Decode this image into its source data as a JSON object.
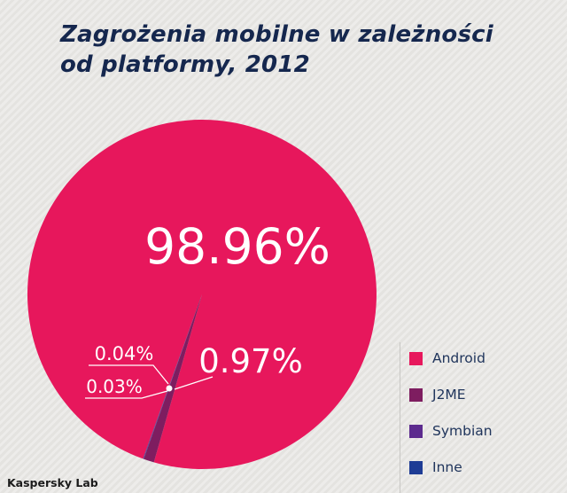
{
  "title": {
    "line1": "Zagrożenia mobilne w zależności",
    "line2": "od platformy, 2012"
  },
  "footer": {
    "brand": "Kaspersky Lab"
  },
  "chart_data": {
    "type": "pie",
    "title": "Zagrożenia mobilne w zależności od platformy, 2012",
    "slices": [
      {
        "label": "Android",
        "value": 98.96,
        "color": "#e7175c"
      },
      {
        "label": "J2ME",
        "value": 0.97,
        "color": "#7e1d60"
      },
      {
        "label": "Symbian",
        "value": 0.04,
        "color": "#5c2b8e"
      },
      {
        "label": "Inne",
        "value": 0.03,
        "color": "#1e3c95"
      }
    ],
    "labels": {
      "android": "98.96%",
      "j2me": "0.97%",
      "symbian": "0.04%",
      "inne": "0.03%"
    },
    "legend_position": "bottom-right",
    "start_angle_deg": 199.75
  },
  "legend": {
    "items": [
      {
        "label": "Android",
        "color": "#e7175c"
      },
      {
        "label": "J2ME",
        "color": "#7e1d60"
      },
      {
        "label": "Symbian",
        "color": "#5c2b8e"
      },
      {
        "label": "Inne",
        "color": "#1e3c95"
      }
    ]
  }
}
